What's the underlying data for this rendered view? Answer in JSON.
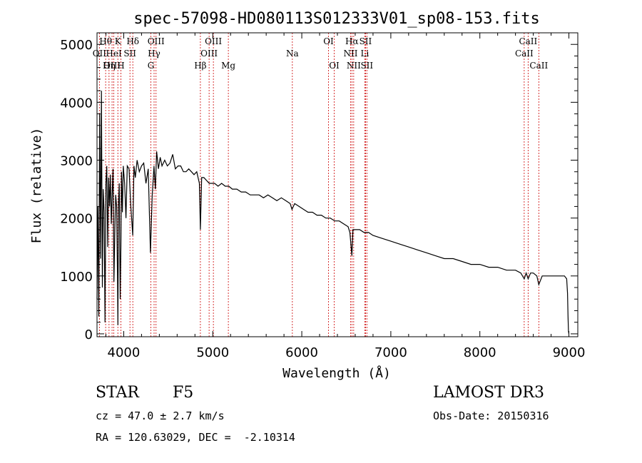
{
  "chart_data": {
    "type": "line",
    "title": "spec-57098-HD080113S012333V01_sp08-153.fits",
    "xlabel": "Wavelength (Å)",
    "ylabel": "Flux (relative)",
    "xlim": [
      3700,
      9100
    ],
    "ylim": [
      -50,
      5200
    ],
    "x_ticks": [
      4000,
      5000,
      6000,
      7000,
      8000,
      9000
    ],
    "y_ticks": [
      0,
      1000,
      2000,
      3000,
      4000,
      5000
    ],
    "line_color": "#000000",
    "marker_color": "#cc0000",
    "series": [
      {
        "name": "flux",
        "x": [
          3700,
          3710,
          3720,
          3730,
          3740,
          3750,
          3760,
          3770,
          3780,
          3790,
          3800,
          3810,
          3820,
          3830,
          3840,
          3850,
          3860,
          3870,
          3880,
          3890,
          3900,
          3910,
          3920,
          3930,
          3935,
          3940,
          3950,
          3960,
          3968,
          3975,
          3985,
          3995,
          4010,
          4025,
          4040,
          4060,
          4080,
          4101,
          4115,
          4130,
          4150,
          4175,
          4200,
          4225,
          4250,
          4275,
          4300,
          4320,
          4340,
          4355,
          4370,
          4390,
          4410,
          4430,
          4460,
          4490,
          4520,
          4550,
          4580,
          4610,
          4640,
          4670,
          4700,
          4730,
          4760,
          4790,
          4820,
          4850,
          4861,
          4875,
          4900,
          4930,
          4960,
          4990,
          5020,
          5060,
          5100,
          5140,
          5180,
          5220,
          5270,
          5320,
          5370,
          5420,
          5470,
          5520,
          5570,
          5620,
          5670,
          5720,
          5770,
          5820,
          5870,
          5890,
          5920,
          5970,
          6020,
          6070,
          6120,
          6170,
          6220,
          6270,
          6320,
          6370,
          6420,
          6470,
          6520,
          6540,
          6563,
          6575,
          6600,
          6650,
          6700,
          6750,
          6800,
          6900,
          7000,
          7100,
          7200,
          7300,
          7400,
          7500,
          7600,
          7700,
          7800,
          7900,
          8000,
          8100,
          8200,
          8300,
          8400,
          8460,
          8498,
          8520,
          8542,
          8570,
          8600,
          8640,
          8662,
          8700,
          8750,
          8800,
          8850,
          8900,
          8950,
          8975,
          8985,
          8990,
          8995,
          9000
        ],
        "values": [
          600,
          2200,
          300,
          3800,
          1300,
          4200,
          800,
          2500,
          2100,
          200,
          2600,
          2900,
          1500,
          2700,
          2200,
          2750,
          1900,
          2400,
          2850,
          900,
          1800,
          2400,
          2200,
          1000,
          150,
          2200,
          2600,
          600,
          1500,
          2800,
          2100,
          2900,
          2600,
          2000,
          2900,
          2850,
          2200,
          1700,
          2900,
          2700,
          3000,
          2800,
          2900,
          2950,
          2600,
          2850,
          1400,
          2400,
          2900,
          2500,
          3150,
          2850,
          3050,
          2900,
          3000,
          2900,
          2950,
          3100,
          2850,
          2900,
          2900,
          2800,
          2800,
          2850,
          2800,
          2750,
          2800,
          2600,
          1800,
          2700,
          2700,
          2650,
          2600,
          2600,
          2600,
          2550,
          2600,
          2550,
          2550,
          2500,
          2500,
          2450,
          2450,
          2400,
          2400,
          2400,
          2350,
          2400,
          2350,
          2300,
          2350,
          2300,
          2250,
          2150,
          2250,
          2200,
          2150,
          2100,
          2100,
          2050,
          2050,
          2000,
          2000,
          1950,
          1950,
          1900,
          1850,
          1750,
          1350,
          1800,
          1800,
          1800,
          1750,
          1750,
          1700,
          1650,
          1600,
          1550,
          1500,
          1450,
          1400,
          1350,
          1300,
          1300,
          1250,
          1200,
          1200,
          1150,
          1150,
          1100,
          1100,
          1050,
          950,
          1050,
          950,
          1050,
          1050,
          1000,
          850,
          1000,
          1000,
          1000,
          1000,
          1000,
          1000,
          950,
          700,
          300,
          50,
          0
        ]
      }
    ],
    "line_markers": [
      {
        "wl": 3727,
        "label": "OII",
        "row": 2
      },
      {
        "wl": 3797,
        "label": "Hθ",
        "row": 1
      },
      {
        "wl": 3835,
        "label": "Hη",
        "row": 3
      },
      {
        "wl": 3869,
        "label": "OIII",
        "row": 3
      },
      {
        "wl": 3889,
        "label": "HeI",
        "row": 2
      },
      {
        "wl": 3934,
        "label": "K",
        "row": 1
      },
      {
        "wl": 3968,
        "label": "H",
        "row": 3
      },
      {
        "wl": 4070,
        "label": "SII",
        "row": 2
      },
      {
        "wl": 4102,
        "label": "Hδ",
        "row": 1
      },
      {
        "wl": 4305,
        "label": "G",
        "row": 3
      },
      {
        "wl": 4341,
        "label": "Hγ",
        "row": 2
      },
      {
        "wl": 4363,
        "label": "OIII",
        "row": 1
      },
      {
        "wl": 4861,
        "label": "Hβ",
        "row": 3
      },
      {
        "wl": 4959,
        "label": "OIII",
        "row": 2
      },
      {
        "wl": 5007,
        "label": "OIII",
        "row": 1
      },
      {
        "wl": 5175,
        "label": "Mg",
        "row": 3
      },
      {
        "wl": 5894,
        "label": "Na",
        "row": 2
      },
      {
        "wl": 6300,
        "label": "OI",
        "row": 1
      },
      {
        "wl": 6364,
        "label": "OI",
        "row": 3
      },
      {
        "wl": 6548,
        "label": "NII",
        "row": 2
      },
      {
        "wl": 6563,
        "label": "Hα",
        "row": 1
      },
      {
        "wl": 6583,
        "label": "NII",
        "row": 3
      },
      {
        "wl": 6708,
        "label": "Li",
        "row": 2
      },
      {
        "wl": 6716,
        "label": "SII",
        "row": 1
      },
      {
        "wl": 6731,
        "label": "SII",
        "row": 3
      },
      {
        "wl": 8498,
        "label": "CaII",
        "row": 2
      },
      {
        "wl": 8542,
        "label": "CaII",
        "row": 1
      },
      {
        "wl": 8662,
        "label": "CaII",
        "row": 3
      }
    ]
  },
  "info": {
    "object_class": "STAR",
    "subclass": "F5",
    "survey": "LAMOST DR3",
    "redshift": "cz = 47.0 ± 2.7 km/s",
    "obs_date": "Obs-Date: 20150316",
    "coords": "RA = 120.63029, DEC =  -2.10314"
  }
}
